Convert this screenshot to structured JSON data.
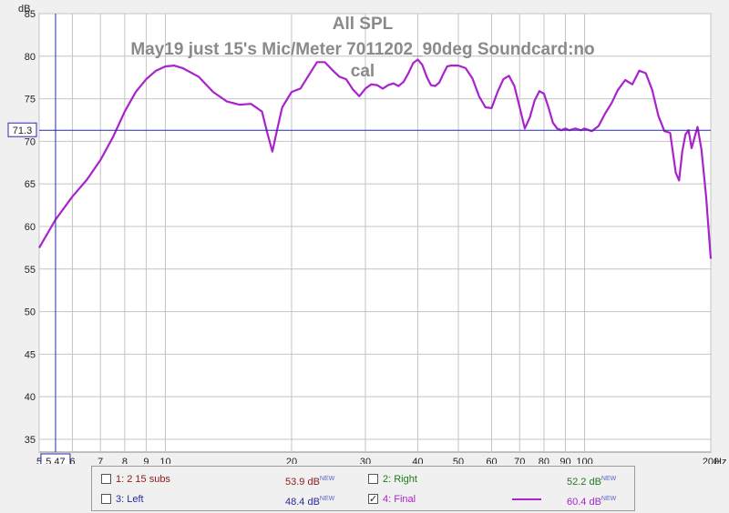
{
  "chart_data": {
    "type": "line",
    "title_line1": "All SPL",
    "title_line2": "May19 just 15's Mic/Meter 7011202_90deg Soundcard:no",
    "title_line3": "cal",
    "ylabel": "dB",
    "xunit": "Hz",
    "x_scale": "log",
    "xlim": [
      5,
      200
    ],
    "ylim": [
      33.5,
      85
    ],
    "grid": true,
    "y_ticks": [
      "85",
      "80",
      "75",
      "70",
      "65",
      "60",
      "55",
      "50",
      "45",
      "40",
      "35"
    ],
    "x_ticks": [
      "5",
      "6",
      "7",
      "8",
      "9",
      "10",
      "20",
      "30",
      "40",
      "50",
      "60",
      "70",
      "80",
      "90",
      "100",
      "200"
    ],
    "cursor": {
      "x": "5.47",
      "y": "71.3",
      "x_value": 5.47,
      "y_value": 71.3
    },
    "series": [
      {
        "name": "4: Final",
        "color": "#aa22cc",
        "x": [
          5,
          5.47,
          6,
          6.5,
          7,
          7.5,
          8,
          8.5,
          9,
          9.5,
          10,
          10.5,
          11,
          12,
          13,
          14,
          15,
          16,
          17,
          17.5,
          18,
          18.5,
          19,
          20,
          21,
          22,
          23,
          24,
          25,
          26,
          27,
          28,
          29,
          30,
          31,
          32,
          33,
          34,
          35,
          36,
          37,
          38,
          39,
          40,
          41,
          42,
          43,
          44,
          45,
          46,
          47,
          48,
          50,
          52,
          54,
          56,
          58,
          60,
          62,
          64,
          66,
          68,
          70,
          72,
          74,
          76,
          78,
          80,
          82,
          84,
          86,
          88,
          90,
          92,
          95,
          98,
          100,
          104,
          108,
          112,
          116,
          120,
          125,
          130,
          135,
          140,
          145,
          150,
          155,
          160,
          165,
          168,
          171,
          174,
          177,
          180,
          183,
          186,
          190,
          195,
          200
        ],
        "y": [
          57.5,
          60.8,
          63.5,
          65.5,
          67.8,
          70.5,
          73.5,
          75.8,
          77.3,
          78.3,
          78.8,
          78.9,
          78.6,
          77.6,
          75.8,
          74.7,
          74.3,
          74.4,
          73.5,
          71,
          68.8,
          71.5,
          74,
          75.8,
          76.2,
          77.8,
          79.3,
          79.3,
          78.4,
          77.6,
          77.3,
          76.1,
          75.3,
          76.2,
          76.7,
          76.6,
          76.2,
          76.6,
          76.8,
          76.5,
          77,
          78,
          79.2,
          79.6,
          79,
          77.6,
          76.6,
          76.5,
          76.9,
          77.9,
          78.8,
          78.9,
          78.9,
          78.6,
          77.4,
          75.3,
          74,
          73.9,
          75.8,
          77.3,
          77.7,
          76.5,
          74,
          71.5,
          72.8,
          74.8,
          75.9,
          75.6,
          74,
          72.2,
          71.5,
          71.3,
          71.5,
          71.3,
          71.5,
          71.3,
          71.5,
          71.2,
          71.8,
          73.3,
          74.5,
          76,
          77.2,
          76.7,
          78.3,
          78,
          76,
          73,
          71.2,
          71,
          66.3,
          65.4,
          68.8,
          70.8,
          71.3,
          69.2,
          70.5,
          71.7,
          69,
          63.5,
          56.2
        ]
      }
    ],
    "legend": [
      {
        "checked": false,
        "label": "1: 2 15 subs",
        "value": "53.9 dB",
        "badge": "NEW",
        "color": "#8b1a1a",
        "show_line": false
      },
      {
        "checked": false,
        "label": "2: Right",
        "value": "52.2 dB",
        "badge": "NEW",
        "color": "#1e7a1e",
        "show_line": false
      },
      {
        "checked": false,
        "label": "3: Left",
        "value": "48.4 dB",
        "badge": "NEW",
        "color": "#2a2aa0",
        "show_line": false
      },
      {
        "checked": true,
        "label": "4: Final",
        "value": "60.4 dB",
        "badge": "NEW",
        "color": "#aa22cc",
        "show_line": true
      }
    ]
  }
}
